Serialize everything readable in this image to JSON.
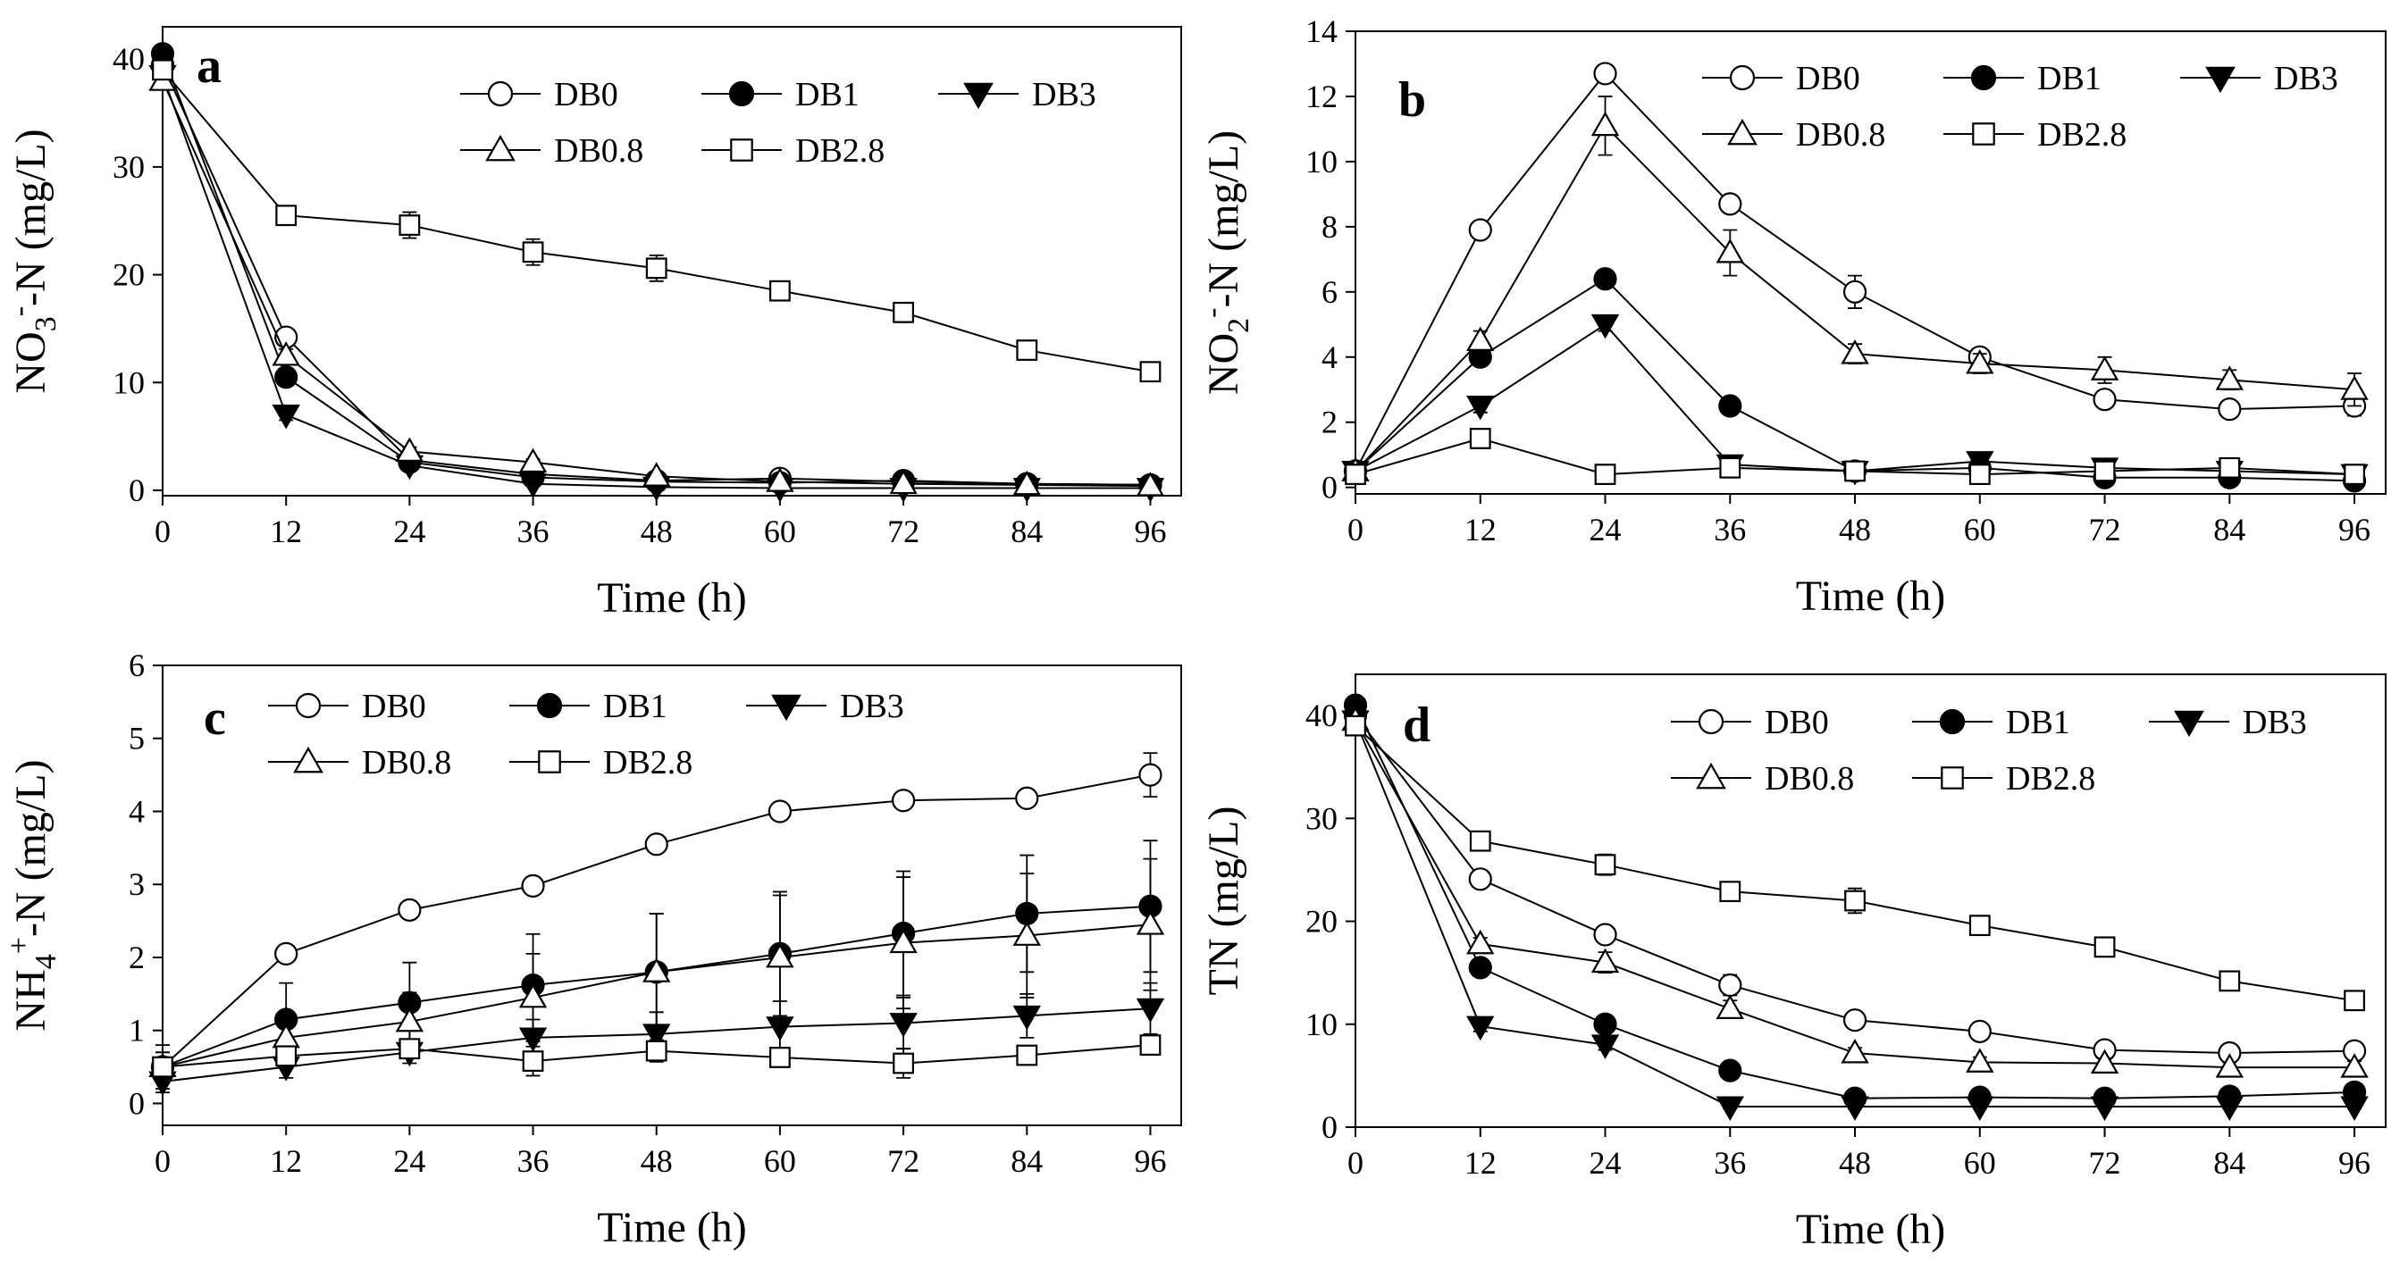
{
  "series_names": [
    "DB0",
    "DB1",
    "DB3",
    "DB0.8",
    "DB2.8"
  ],
  "chart_data": [
    {
      "type": "line",
      "panel_label": "a",
      "title": "",
      "xlabel": "Time (h)",
      "ylabel": "NO3--N (mg/L)",
      "ylabel_parts": [
        "NO",
        "3",
        "-",
        "-N (mg/L)"
      ],
      "x": [
        0,
        12,
        24,
        36,
        48,
        60,
        72,
        84,
        96
      ],
      "xlim": [
        0,
        99
      ],
      "ylim": [
        -0.5,
        43
      ],
      "xticks": [
        "0",
        "12",
        "24",
        "36",
        "48",
        "60",
        "72",
        "84",
        "96"
      ],
      "yticks": [
        "0",
        "10",
        "20",
        "30",
        "40"
      ],
      "ytick_values": [
        0,
        10,
        20,
        30,
        40
      ],
      "legend_placement": "top-right",
      "series": [
        {
          "name": "DB0",
          "marker": "circle-open",
          "values": [
            39.5,
            14.2,
            2.8,
            1.5,
            0.9,
            1.1,
            0.8,
            0.6,
            0.5
          ],
          "errors": [
            0.6,
            0.6,
            0.3,
            0.3,
            0.2,
            0.2,
            0.2,
            0.2,
            0.2
          ]
        },
        {
          "name": "DB1",
          "marker": "circle-filled",
          "values": [
            40.5,
            10.5,
            2.6,
            1.2,
            0.8,
            0.7,
            0.9,
            0.6,
            0.5
          ],
          "errors": [
            0.6,
            0.6,
            0.3,
            0.2,
            0.2,
            0.2,
            0.2,
            0.2,
            0.2
          ]
        },
        {
          "name": "DB3",
          "marker": "triangle-down-filled",
          "values": [
            38.5,
            7.0,
            2.3,
            0.6,
            0.3,
            0.2,
            0.2,
            0.2,
            0.2
          ],
          "errors": [
            0.6,
            0.5,
            0.3,
            0.2,
            0.2,
            0.2,
            0.2,
            0.2,
            0.2
          ]
        },
        {
          "name": "DB0.8",
          "marker": "triangle-up-open",
          "values": [
            38.0,
            12.5,
            3.6,
            2.6,
            1.3,
            0.8,
            0.6,
            0.5,
            0.4
          ],
          "errors": [
            0.6,
            0.6,
            0.4,
            0.3,
            0.2,
            0.2,
            0.2,
            0.2,
            0.2
          ]
        },
        {
          "name": "DB2.8",
          "marker": "square-open",
          "values": [
            39.0,
            25.5,
            24.6,
            22.1,
            20.6,
            18.5,
            16.5,
            13.0,
            11.0
          ],
          "errors": [
            0.6,
            0.7,
            1.2,
            1.2,
            1.2,
            0.7,
            0.9,
            0.6,
            0.7
          ]
        }
      ]
    },
    {
      "type": "line",
      "panel_label": "b",
      "title": "",
      "xlabel": "Time (h)",
      "ylabel": "NO2--N (mg/L)",
      "ylabel_parts": [
        "NO",
        "2",
        "-",
        "-N (mg/L)"
      ],
      "x": [
        0,
        12,
        24,
        36,
        48,
        60,
        72,
        84,
        96
      ],
      "xlim": [
        0,
        99
      ],
      "ylim": [
        -0.2,
        14
      ],
      "xticks": [
        "0",
        "12",
        "24",
        "36",
        "48",
        "60",
        "72",
        "84",
        "96"
      ],
      "yticks": [
        "0",
        "2",
        "4",
        "6",
        "8",
        "10",
        "12",
        "14"
      ],
      "ytick_values": [
        0,
        2,
        4,
        6,
        8,
        10,
        12,
        14
      ],
      "legend_placement": "top-right",
      "series": [
        {
          "name": "DB0",
          "marker": "circle-open",
          "values": [
            0.5,
            7.9,
            12.7,
            8.7,
            6.0,
            4.0,
            2.7,
            2.4,
            2.5
          ],
          "errors": [
            0.1,
            0.2,
            0.2,
            0.2,
            0.5,
            0.2,
            0.2,
            0.2,
            0.3
          ]
        },
        {
          "name": "DB1",
          "marker": "circle-filled",
          "values": [
            0.5,
            4.0,
            6.4,
            2.5,
            0.5,
            0.6,
            0.3,
            0.3,
            0.2
          ],
          "errors": [
            0.1,
            0.2,
            0.2,
            0.2,
            0.1,
            0.1,
            0.1,
            0.1,
            0.1
          ]
        },
        {
          "name": "DB3",
          "marker": "triangle-down-filled",
          "values": [
            0.5,
            2.5,
            5.0,
            0.7,
            0.5,
            0.8,
            0.6,
            0.5,
            0.4
          ],
          "errors": [
            0.1,
            0.2,
            0.2,
            0.1,
            0.1,
            0.1,
            0.1,
            0.1,
            0.1
          ]
        },
        {
          "name": "DB0.8",
          "marker": "triangle-up-open",
          "values": [
            0.5,
            4.5,
            11.1,
            7.2,
            4.1,
            3.8,
            3.6,
            3.3,
            3.0
          ],
          "errors": [
            0.1,
            0.3,
            0.9,
            0.7,
            0.3,
            0.3,
            0.4,
            0.3,
            0.5
          ]
        },
        {
          "name": "DB2.8",
          "marker": "square-open",
          "values": [
            0.4,
            1.5,
            0.4,
            0.6,
            0.5,
            0.4,
            0.5,
            0.6,
            0.4
          ],
          "errors": [
            0.1,
            0.2,
            0.1,
            0.1,
            0.1,
            0.1,
            0.1,
            0.1,
            0.1
          ]
        }
      ]
    },
    {
      "type": "line",
      "panel_label": "c",
      "title": "",
      "xlabel": "Time (h)",
      "ylabel": "NH4+-N (mg/L)",
      "ylabel_parts": [
        "NH",
        "4",
        "+",
        "-N (mg/L)"
      ],
      "x": [
        0,
        12,
        24,
        36,
        48,
        60,
        72,
        84,
        96
      ],
      "xlim": [
        0,
        99
      ],
      "ylim": [
        -0.3,
        6
      ],
      "xticks": [
        "0",
        "12",
        "24",
        "36",
        "48",
        "60",
        "72",
        "84",
        "96"
      ],
      "yticks": [
        "0",
        "1",
        "2",
        "3",
        "4",
        "5",
        "6"
      ],
      "ytick_values": [
        0,
        1,
        2,
        3,
        4,
        5,
        6
      ],
      "legend_placement": "top-center",
      "series": [
        {
          "name": "DB0",
          "marker": "circle-open",
          "values": [
            0.5,
            2.05,
            2.65,
            2.98,
            3.55,
            4.0,
            4.15,
            4.18,
            4.5
          ],
          "errors": [
            0.2,
            0.1,
            0.1,
            0.1,
            0.1,
            0.1,
            0.1,
            0.1,
            0.3
          ]
        },
        {
          "name": "DB1",
          "marker": "circle-filled",
          "values": [
            0.5,
            1.15,
            1.38,
            1.62,
            1.8,
            2.05,
            2.33,
            2.6,
            2.7
          ],
          "errors": [
            0.3,
            0.5,
            0.55,
            0.7,
            0.8,
            0.85,
            0.85,
            0.8,
            0.9
          ]
        },
        {
          "name": "DB3",
          "marker": "triangle-down-filled",
          "values": [
            0.3,
            0.5,
            0.7,
            0.9,
            0.95,
            1.05,
            1.1,
            1.2,
            1.3
          ],
          "errors": [
            0.15,
            0.15,
            0.15,
            0.25,
            0.3,
            0.35,
            0.35,
            0.3,
            0.35
          ]
        },
        {
          "name": "DB0.8",
          "marker": "triangle-up-open",
          "values": [
            0.5,
            0.9,
            1.12,
            1.45,
            1.8,
            2.0,
            2.2,
            2.3,
            2.45
          ],
          "errors": [
            0.2,
            0.3,
            0.4,
            0.6,
            0.8,
            0.85,
            0.9,
            0.85,
            0.9
          ]
        },
        {
          "name": "DB2.8",
          "marker": "square-open",
          "values": [
            0.5,
            0.65,
            0.75,
            0.58,
            0.72,
            0.63,
            0.55,
            0.66,
            0.8
          ],
          "errors": [
            0.1,
            0.1,
            0.1,
            0.2,
            0.15,
            0.1,
            0.2,
            0.1,
            0.12
          ]
        }
      ]
    },
    {
      "type": "line",
      "panel_label": "d",
      "title": "",
      "xlabel": "Time (h)",
      "ylabel": "TN (mg/L)",
      "ylabel_parts": [
        "TN (mg/L)"
      ],
      "x": [
        0,
        12,
        24,
        36,
        48,
        60,
        72,
        84,
        96
      ],
      "xlim": [
        0,
        99
      ],
      "ylim": [
        0,
        44
      ],
      "xticks": [
        "0",
        "12",
        "24",
        "36",
        "48",
        "60",
        "72",
        "84",
        "96"
      ],
      "yticks": [
        "0",
        "10",
        "20",
        "30",
        "40"
      ],
      "ytick_values": [
        0,
        10,
        20,
        30,
        40
      ],
      "legend_placement": "top-right",
      "series": [
        {
          "name": "DB0",
          "marker": "circle-open",
          "values": [
            40.0,
            24.1,
            18.7,
            13.8,
            10.4,
            9.3,
            7.5,
            7.2,
            7.4
          ],
          "errors": [
            0.6,
            0.5,
            0.8,
            1.0,
            0.8,
            0.6,
            0.6,
            0.6,
            0.6
          ]
        },
        {
          "name": "DB1",
          "marker": "circle-filled",
          "values": [
            41.0,
            15.5,
            10.0,
            5.5,
            2.8,
            2.9,
            2.8,
            3.0,
            3.4
          ],
          "errors": [
            0.6,
            0.5,
            0.5,
            0.4,
            0.3,
            0.3,
            0.3,
            0.3,
            0.3
          ]
        },
        {
          "name": "DB3",
          "marker": "triangle-down-filled",
          "values": [
            39.5,
            9.8,
            8.0,
            2.0,
            2.0,
            2.0,
            2.0,
            2.0,
            2.0
          ],
          "errors": [
            0.6,
            0.5,
            0.5,
            0.2,
            0.2,
            0.2,
            0.2,
            0.2,
            0.2
          ]
        },
        {
          "name": "DB0.8",
          "marker": "triangle-up-open",
          "values": [
            39.5,
            17.8,
            16.0,
            11.5,
            7.2,
            6.3,
            6.2,
            5.8,
            5.8
          ],
          "errors": [
            0.6,
            0.6,
            1.0,
            0.8,
            0.5,
            0.5,
            0.5,
            0.5,
            0.6
          ]
        },
        {
          "name": "DB2.8",
          "marker": "square-open",
          "values": [
            39.0,
            27.8,
            25.5,
            22.9,
            22.0,
            19.6,
            17.5,
            14.2,
            12.3
          ],
          "errors": [
            0.6,
            0.6,
            1.0,
            0.9,
            1.2,
            0.7,
            0.7,
            0.7,
            0.8
          ]
        }
      ]
    }
  ]
}
